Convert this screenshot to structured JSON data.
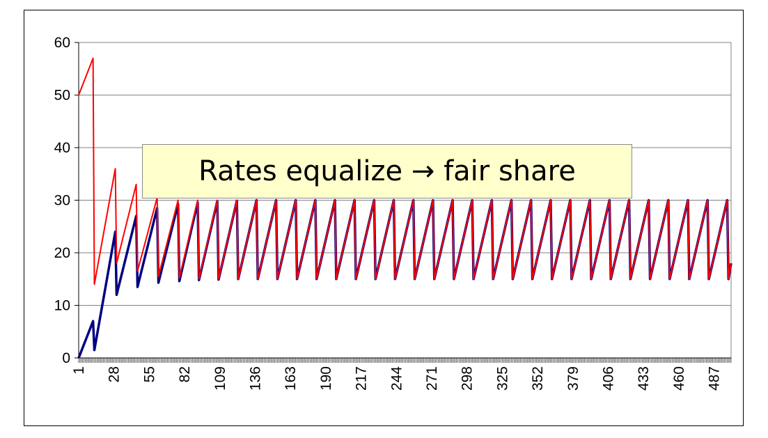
{
  "chart_data": {
    "type": "line",
    "title": "",
    "xlabel": "",
    "ylabel": "",
    "x_range": [
      1,
      500
    ],
    "xlim": [
      1,
      500
    ],
    "ylim": [
      0,
      60
    ],
    "y_ticks": [
      0,
      10,
      20,
      30,
      40,
      50,
      60
    ],
    "x_tick_labels": [
      "1",
      "28",
      "55",
      "82",
      "109",
      "136",
      "163",
      "190",
      "217",
      "244",
      "271",
      "298",
      "325",
      "352",
      "379",
      "406",
      "433",
      "460",
      "487"
    ],
    "grid": "horizontal",
    "legend": "none",
    "annotation": "Rates equalize → fair share",
    "series": [
      {
        "color": "#ff0000",
        "points": [
          [
            1,
            50
          ],
          [
            12,
            57
          ],
          [
            13,
            14
          ],
          [
            29,
            36
          ],
          [
            30,
            18
          ],
          [
            45,
            33
          ],
          [
            46,
            16.5
          ],
          [
            61,
            30.5
          ],
          [
            62,
            15.5
          ],
          [
            77,
            30
          ],
          [
            78,
            15.2
          ],
          [
            92,
            30
          ],
          [
            93,
            15
          ],
          [
            107,
            30
          ],
          [
            108,
            15
          ],
          [
            122,
            30
          ],
          [
            123,
            15
          ],
          [
            137,
            30
          ],
          [
            138,
            15
          ],
          [
            152,
            30
          ],
          [
            153,
            15
          ],
          [
            167,
            30
          ],
          [
            168,
            15
          ],
          [
            182,
            30
          ],
          [
            183,
            15
          ],
          [
            197,
            30
          ],
          [
            198,
            15
          ],
          [
            212,
            30
          ],
          [
            213,
            15
          ],
          [
            227,
            30
          ],
          [
            228,
            15
          ],
          [
            242,
            30
          ],
          [
            243,
            15
          ],
          [
            257,
            30
          ],
          [
            258,
            15
          ],
          [
            272,
            30
          ],
          [
            273,
            15
          ],
          [
            287,
            30
          ],
          [
            288,
            15
          ],
          [
            302,
            30
          ],
          [
            303,
            15
          ],
          [
            317,
            30
          ],
          [
            318,
            15
          ],
          [
            332,
            30
          ],
          [
            333,
            15
          ],
          [
            347,
            30
          ],
          [
            348,
            15
          ],
          [
            362,
            30
          ],
          [
            363,
            15
          ],
          [
            377,
            30
          ],
          [
            378,
            15
          ],
          [
            392,
            30
          ],
          [
            393,
            15
          ],
          [
            407,
            30
          ],
          [
            408,
            15
          ],
          [
            422,
            30
          ],
          [
            423,
            15
          ],
          [
            437,
            30
          ],
          [
            438,
            15
          ],
          [
            452,
            30
          ],
          [
            453,
            15
          ],
          [
            467,
            30
          ],
          [
            468,
            15
          ],
          [
            482,
            30
          ],
          [
            483,
            15
          ],
          [
            497,
            30
          ],
          [
            498,
            15
          ],
          [
            500,
            18
          ]
        ]
      },
      {
        "color": "#000080",
        "points": [
          [
            1,
            0
          ],
          [
            12,
            7
          ],
          [
            13,
            1.5
          ],
          [
            29,
            24
          ],
          [
            30,
            12
          ],
          [
            45,
            27
          ],
          [
            46,
            13.5
          ],
          [
            61,
            28.5
          ],
          [
            62,
            14.3
          ],
          [
            77,
            29.3
          ],
          [
            78,
            14.6
          ],
          [
            92,
            29.6
          ],
          [
            93,
            14.8
          ],
          [
            107,
            29.8
          ],
          [
            108,
            14.9
          ],
          [
            122,
            29.9
          ],
          [
            123,
            15
          ],
          [
            137,
            30
          ],
          [
            138,
            15
          ],
          [
            152,
            30
          ],
          [
            153,
            15
          ],
          [
            167,
            30
          ],
          [
            168,
            15
          ],
          [
            182,
            30
          ],
          [
            183,
            15
          ],
          [
            197,
            30
          ],
          [
            198,
            15
          ],
          [
            212,
            30
          ],
          [
            213,
            15
          ],
          [
            227,
            30
          ],
          [
            228,
            15
          ],
          [
            242,
            30
          ],
          [
            243,
            15
          ],
          [
            257,
            30
          ],
          [
            258,
            15
          ],
          [
            272,
            30
          ],
          [
            273,
            15
          ],
          [
            287,
            30
          ],
          [
            288,
            15
          ],
          [
            302,
            30
          ],
          [
            303,
            15
          ],
          [
            317,
            30
          ],
          [
            318,
            15
          ],
          [
            332,
            30
          ],
          [
            333,
            15
          ],
          [
            347,
            30
          ],
          [
            348,
            15
          ],
          [
            362,
            30
          ],
          [
            363,
            15
          ],
          [
            377,
            30
          ],
          [
            378,
            15
          ],
          [
            392,
            30
          ],
          [
            393,
            15
          ],
          [
            407,
            30
          ],
          [
            408,
            15
          ],
          [
            422,
            30
          ],
          [
            423,
            15
          ],
          [
            437,
            30
          ],
          [
            438,
            15
          ],
          [
            452,
            30
          ],
          [
            453,
            15
          ],
          [
            467,
            30
          ],
          [
            468,
            15
          ],
          [
            482,
            30
          ],
          [
            483,
            15
          ],
          [
            497,
            30
          ],
          [
            498,
            15
          ],
          [
            500,
            18
          ]
        ]
      }
    ]
  }
}
